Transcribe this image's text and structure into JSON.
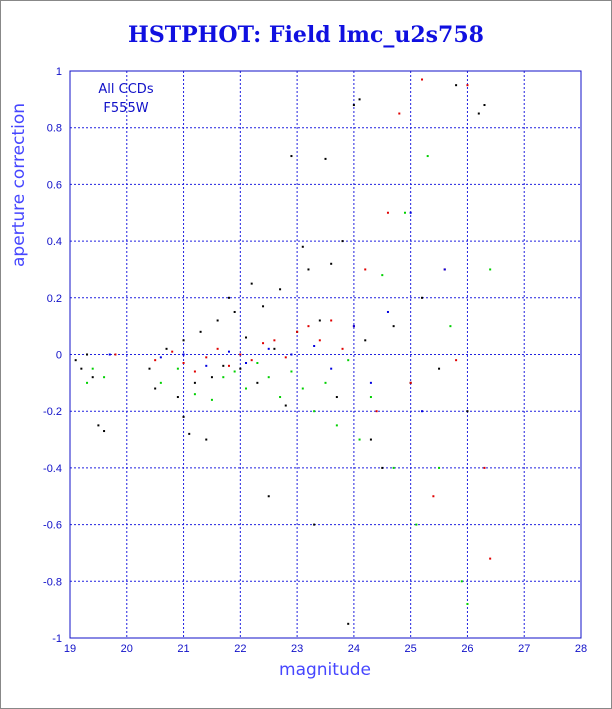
{
  "chart_data": {
    "type": "scatter",
    "title": "HSTPHOT: Field lmc_u2s758",
    "xlabel": "magnitude",
    "ylabel": "aperture correction",
    "xlim": [
      19,
      28
    ],
    "ylim": [
      -1,
      1
    ],
    "xticks": [
      "19",
      "20",
      "21",
      "22",
      "23",
      "24",
      "25",
      "26",
      "27",
      "28"
    ],
    "yticks": [
      "-1",
      "-0.8",
      "-0.6",
      "-0.4",
      "-0.2",
      "0",
      "0.2",
      "0.4",
      "0.6",
      "0.8",
      "1"
    ],
    "annotation": [
      "All CCDs",
      "F555W"
    ],
    "grid": true,
    "series_colors": [
      "#000000",
      "#e00000",
      "#00d000",
      "#0000e0"
    ],
    "series": [
      {
        "color": "#000000",
        "points": [
          [
            19.1,
            -0.02
          ],
          [
            19.2,
            -0.05
          ],
          [
            19.3,
            0.0
          ],
          [
            19.4,
            -0.08
          ],
          [
            19.5,
            -0.25
          ],
          [
            19.6,
            -0.27
          ],
          [
            20.4,
            -0.05
          ],
          [
            20.5,
            -0.12
          ],
          [
            20.7,
            0.02
          ],
          [
            20.9,
            -0.15
          ],
          [
            21.0,
            -0.22
          ],
          [
            21.0,
            0.05
          ],
          [
            21.1,
            -0.28
          ],
          [
            21.2,
            -0.1
          ],
          [
            21.3,
            0.08
          ],
          [
            21.4,
            -0.3
          ],
          [
            21.5,
            -0.08
          ],
          [
            21.6,
            0.12
          ],
          [
            21.7,
            -0.04
          ],
          [
            21.8,
            0.2
          ],
          [
            21.9,
            0.15
          ],
          [
            22.0,
            -0.05
          ],
          [
            22.1,
            0.06
          ],
          [
            22.2,
            0.25
          ],
          [
            22.3,
            -0.1
          ],
          [
            22.4,
            0.17
          ],
          [
            22.5,
            -0.5
          ],
          [
            22.6,
            0.02
          ],
          [
            22.7,
            0.23
          ],
          [
            22.8,
            -0.18
          ],
          [
            22.9,
            0.7
          ],
          [
            23.0,
            0.08
          ],
          [
            23.1,
            0.38
          ],
          [
            23.2,
            0.3
          ],
          [
            23.3,
            -0.6
          ],
          [
            23.4,
            0.12
          ],
          [
            23.5,
            0.69
          ],
          [
            23.6,
            0.32
          ],
          [
            23.7,
            -0.15
          ],
          [
            23.8,
            0.4
          ],
          [
            23.9,
            -0.95
          ],
          [
            24.0,
            0.88
          ],
          [
            24.1,
            0.9
          ],
          [
            24.2,
            0.05
          ],
          [
            24.3,
            -0.3
          ],
          [
            24.5,
            -0.4
          ],
          [
            24.7,
            0.1
          ],
          [
            25.0,
            -0.1
          ],
          [
            25.2,
            0.2
          ],
          [
            25.5,
            -0.05
          ],
          [
            25.8,
            0.95
          ],
          [
            26.0,
            -0.2
          ],
          [
            26.2,
            0.85
          ],
          [
            26.3,
            0.88
          ]
        ]
      },
      {
        "color": "#e00000",
        "points": [
          [
            19.8,
            0.0
          ],
          [
            20.5,
            -0.02
          ],
          [
            20.8,
            0.01
          ],
          [
            21.0,
            -0.03
          ],
          [
            21.2,
            -0.06
          ],
          [
            21.4,
            -0.01
          ],
          [
            21.6,
            0.02
          ],
          [
            21.8,
            -0.04
          ],
          [
            22.0,
            0.0
          ],
          [
            22.2,
            -0.02
          ],
          [
            22.4,
            0.04
          ],
          [
            22.6,
            0.05
          ],
          [
            22.8,
            -0.01
          ],
          [
            23.0,
            0.08
          ],
          [
            23.2,
            0.1
          ],
          [
            23.4,
            0.05
          ],
          [
            23.6,
            0.12
          ],
          [
            23.8,
            0.02
          ],
          [
            24.0,
            0.1
          ],
          [
            24.2,
            0.3
          ],
          [
            24.4,
            -0.2
          ],
          [
            24.6,
            0.5
          ],
          [
            24.8,
            0.85
          ],
          [
            25.0,
            -0.1
          ],
          [
            25.2,
            0.97
          ],
          [
            25.4,
            -0.5
          ],
          [
            25.6,
            0.3
          ],
          [
            25.8,
            -0.02
          ],
          [
            26.0,
            0.95
          ],
          [
            26.3,
            -0.4
          ],
          [
            26.4,
            -0.72
          ]
        ]
      },
      {
        "color": "#00d000",
        "points": [
          [
            19.3,
            -0.1
          ],
          [
            19.4,
            -0.05
          ],
          [
            19.6,
            -0.08
          ],
          [
            20.6,
            -0.1
          ],
          [
            20.9,
            -0.05
          ],
          [
            21.2,
            -0.14
          ],
          [
            21.5,
            -0.16
          ],
          [
            21.7,
            -0.08
          ],
          [
            21.9,
            -0.06
          ],
          [
            22.1,
            -0.12
          ],
          [
            22.3,
            -0.03
          ],
          [
            22.5,
            -0.08
          ],
          [
            22.7,
            -0.15
          ],
          [
            22.9,
            -0.06
          ],
          [
            23.1,
            -0.12
          ],
          [
            23.3,
            -0.2
          ],
          [
            23.5,
            -0.1
          ],
          [
            23.7,
            -0.25
          ],
          [
            23.9,
            -0.02
          ],
          [
            24.1,
            -0.3
          ],
          [
            24.3,
            -0.15
          ],
          [
            24.5,
            0.28
          ],
          [
            24.7,
            -0.4
          ],
          [
            24.9,
            0.5
          ],
          [
            25.1,
            -0.6
          ],
          [
            25.3,
            0.7
          ],
          [
            25.5,
            -0.4
          ],
          [
            25.7,
            0.1
          ],
          [
            25.9,
            -0.8
          ],
          [
            26.0,
            -0.88
          ],
          [
            26.4,
            0.3
          ]
        ]
      },
      {
        "color": "#0000e0",
        "points": [
          [
            19.7,
            0.0
          ],
          [
            20.6,
            -0.01
          ],
          [
            21.0,
            0.0
          ],
          [
            21.4,
            -0.04
          ],
          [
            21.8,
            0.01
          ],
          [
            22.1,
            -0.03
          ],
          [
            22.5,
            0.02
          ],
          [
            22.9,
            0.0
          ],
          [
            23.3,
            0.03
          ],
          [
            23.6,
            -0.05
          ],
          [
            24.0,
            0.1
          ],
          [
            24.3,
            -0.1
          ],
          [
            24.6,
            0.15
          ],
          [
            25.0,
            0.5
          ],
          [
            25.2,
            -0.2
          ],
          [
            25.6,
            0.3
          ]
        ]
      }
    ]
  }
}
